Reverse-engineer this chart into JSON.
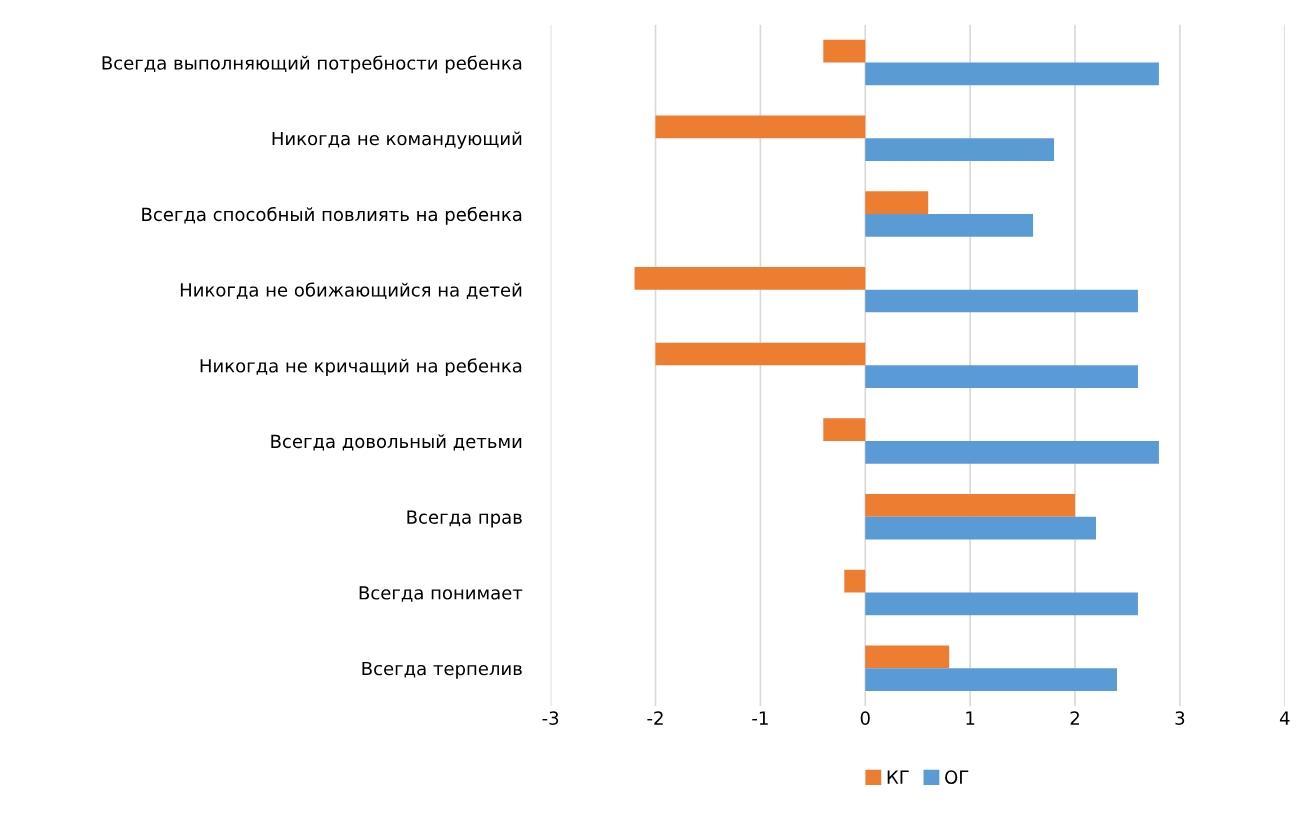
{
  "chart_data": {
    "type": "bar",
    "orientation": "horizontal",
    "categories": [
      "Всегда выполняющий потребности ребенка",
      "Никогда не командующий",
      "Всегда способный повлиять на ребенка",
      "Никогда не обижающийся на детей",
      "Никогда не кричащий на ребенка",
      "Всегда довольный детьми",
      "Всегда прав",
      "Всегда понимает",
      "Всегда терпелив"
    ],
    "series": [
      {
        "name": "КГ",
        "color": "#ed7d31",
        "values": [
          -0.4,
          -2,
          0.6,
          -2.2,
          -2,
          -0.4,
          2,
          -0.2,
          0.8
        ]
      },
      {
        "name": "ОГ",
        "color": "#5b9bd5",
        "values": [
          2.8,
          1.8,
          1.6,
          2.6,
          2.6,
          2.8,
          2.2,
          2.6,
          2.4
        ]
      }
    ],
    "xlim": [
      -3,
      4
    ],
    "xticks": [
      -3,
      -2,
      -1,
      0,
      1,
      2,
      3,
      4
    ],
    "grid": "x",
    "legend": "bottom"
  }
}
